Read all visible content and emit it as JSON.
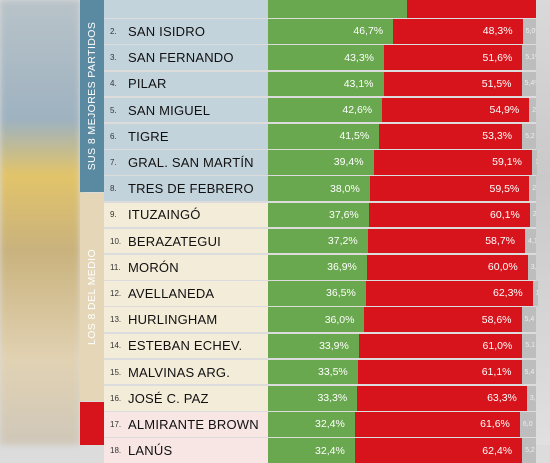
{
  "groups": [
    {
      "label": "SUS 8 MEJORES PARTIDOS",
      "color": "#5a8aa1"
    },
    {
      "label": "LOS 8 DEL MEDIO",
      "color": "#e4d6b6"
    },
    {
      "label": "",
      "color": "#d7141b"
    }
  ],
  "colors": {
    "green": "#6aa84f",
    "red": "#d7141b",
    "other": "#bdbdbd"
  },
  "chart_data": {
    "type": "bar",
    "stacked": true,
    "orientation": "horizontal",
    "rows": [
      {
        "rank": "",
        "name": "",
        "green": null,
        "red": null,
        "other": "",
        "group": 0
      },
      {
        "rank": "2.",
        "name": "SAN ISIDRO",
        "green": 46.7,
        "green_label": "46,7%",
        "red": 48.3,
        "red_label": "48,3%",
        "other": "5,0%",
        "group": 0
      },
      {
        "rank": "3.",
        "name": "SAN FERNANDO",
        "green": 43.3,
        "green_label": "43,3%",
        "red": 51.6,
        "red_label": "51,6%",
        "other": "5,1%",
        "group": 0
      },
      {
        "rank": "4.",
        "name": "PILAR",
        "green": 43.1,
        "green_label": "43,1%",
        "red": 51.5,
        "red_label": "51,5%",
        "other": "5,4%",
        "group": 0
      },
      {
        "rank": "5.",
        "name": "SAN MIGUEL",
        "green": 42.6,
        "green_label": "42,6%",
        "red": 54.9,
        "red_label": "54,9%",
        "other": "2,5",
        "group": 0
      },
      {
        "rank": "6.",
        "name": "TIGRE",
        "green": 41.5,
        "green_label": "41,5%",
        "red": 53.3,
        "red_label": "53,3%",
        "other": "5,2",
        "group": 0
      },
      {
        "rank": "7.",
        "name": "GRAL. SAN MARTÍN",
        "green": 39.4,
        "green_label": "39,4%",
        "red": 59.1,
        "red_label": "59,1%",
        "other": "1,5",
        "group": 0
      },
      {
        "rank": "8.",
        "name": "TRES DE FEBRERO",
        "green": 38.0,
        "green_label": "38,0%",
        "red": 59.5,
        "red_label": "59,5%",
        "other": "2,5",
        "group": 0
      },
      {
        "rank": "9.",
        "name": "ITUZAINGÓ",
        "green": 37.6,
        "green_label": "37,6%",
        "red": 60.1,
        "red_label": "60,1%",
        "other": "2,3",
        "group": 1
      },
      {
        "rank": "10.",
        "name": "BERAZATEGUI",
        "green": 37.2,
        "green_label": "37,2%",
        "red": 58.7,
        "red_label": "58,7%",
        "other": "4,1",
        "group": 1
      },
      {
        "rank": "11.",
        "name": "MORÓN",
        "green": 36.9,
        "green_label": "36,9%",
        "red": 60.0,
        "red_label": "60,0%",
        "other": "3,1",
        "group": 1
      },
      {
        "rank": "12.",
        "name": "AVELLANEDA",
        "green": 36.5,
        "green_label": "36,5%",
        "red": 62.3,
        "red_label": "62,3%",
        "other": "1,2",
        "group": 1
      },
      {
        "rank": "13.",
        "name": "HURLINGHAM",
        "green": 36.0,
        "green_label": "36,0%",
        "red": 58.6,
        "red_label": "58,6%",
        "other": "5,4",
        "group": 1
      },
      {
        "rank": "14.",
        "name": "ESTEBAN ECHEV.",
        "green": 33.9,
        "green_label": "33,9%",
        "red": 61.0,
        "red_label": "61,0%",
        "other": "5,1",
        "group": 1
      },
      {
        "rank": "15.",
        "name": "MALVINAS ARG.",
        "green": 33.5,
        "green_label": "33,5%",
        "red": 61.1,
        "red_label": "61,1%",
        "other": "5,4",
        "group": 1
      },
      {
        "rank": "16.",
        "name": "JOSÉ C. PAZ",
        "green": 33.3,
        "green_label": "33,3%",
        "red": 63.3,
        "red_label": "63,3%",
        "other": "3,4",
        "group": 1
      },
      {
        "rank": "17.",
        "name": "ALMIRANTE BROWN",
        "green": 32.4,
        "green_label": "32,4%",
        "red": 61.6,
        "red_label": "61,6%",
        "other": "6,0",
        "group": 2
      },
      {
        "rank": "18.",
        "name": "LANÚS",
        "green": 32.4,
        "green_label": "32,4%",
        "red": 62.4,
        "red_label": "62,4%",
        "other": "5,2",
        "group": 2
      }
    ]
  }
}
